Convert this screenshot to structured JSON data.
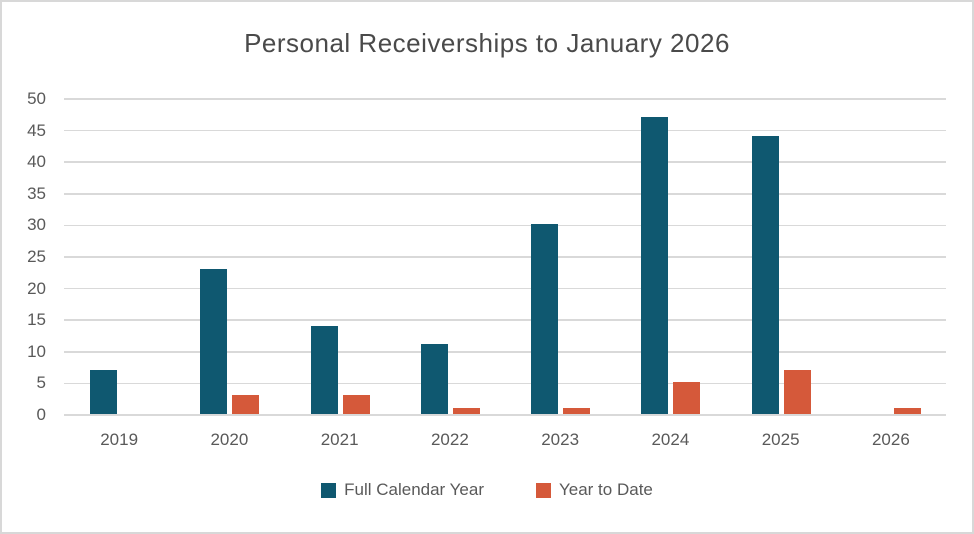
{
  "title": "Personal Receiverships to January 2026",
  "chart_data": {
    "type": "bar",
    "title": "Personal Receiverships to January 2026",
    "categories": [
      "2019",
      "2020",
      "2021",
      "2022",
      "2023",
      "2024",
      "2025",
      "2026"
    ],
    "series": [
      {
        "name": "Full Calendar Year",
        "color": "#0F5870",
        "values": [
          7,
          23,
          14,
          11,
          30,
          47,
          44,
          0
        ]
      },
      {
        "name": "Year to Date",
        "color": "#D5593A",
        "values": [
          0,
          3,
          3,
          1,
          1,
          5,
          7,
          1
        ]
      }
    ],
    "xlabel": "",
    "ylabel": "",
    "ylim": [
      0,
      50
    ],
    "yticks": [
      0,
      5,
      10,
      15,
      20,
      25,
      30,
      35,
      40,
      45,
      50
    ],
    "grid": true,
    "legend_position": "bottom"
  },
  "colors": {
    "bar_full_calendar_year": "#0F5870",
    "bar_year_to_date": "#D5593A",
    "grid_line": "#D9D9D9",
    "axis_text": "#595959",
    "title_text": "#4A4A4A",
    "frame_border": "#D8D8D8",
    "background": "#FFFFFF"
  }
}
